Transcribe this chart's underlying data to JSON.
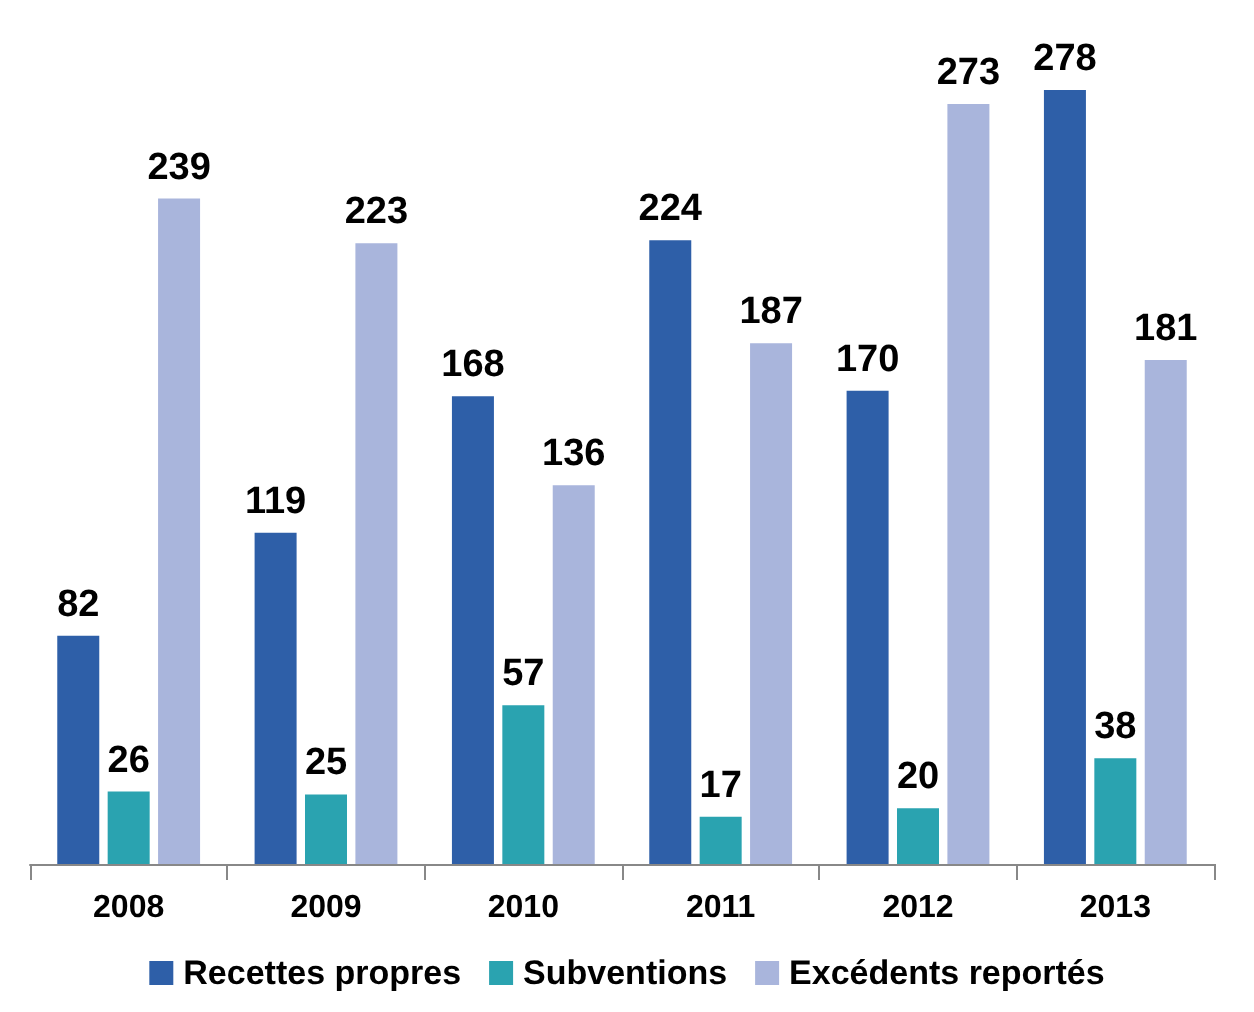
{
  "chart_data": {
    "type": "bar",
    "categories": [
      "2008",
      "2009",
      "2010",
      "2011",
      "2012",
      "2013"
    ],
    "series": [
      {
        "name": "Recettes propres",
        "color": "#2e5fa8",
        "values": [
          82,
          119,
          168,
          224,
          170,
          278
        ]
      },
      {
        "name": "Subventions",
        "color": "#2aa3b0",
        "values": [
          26,
          25,
          57,
          17,
          20,
          38
        ]
      },
      {
        "name": "Excédents reportés",
        "color": "#a9b5dc",
        "values": [
          239,
          223,
          136,
          187,
          273,
          181
        ]
      }
    ],
    "data_labels": true,
    "legend": "bottom",
    "grid": false
  }
}
